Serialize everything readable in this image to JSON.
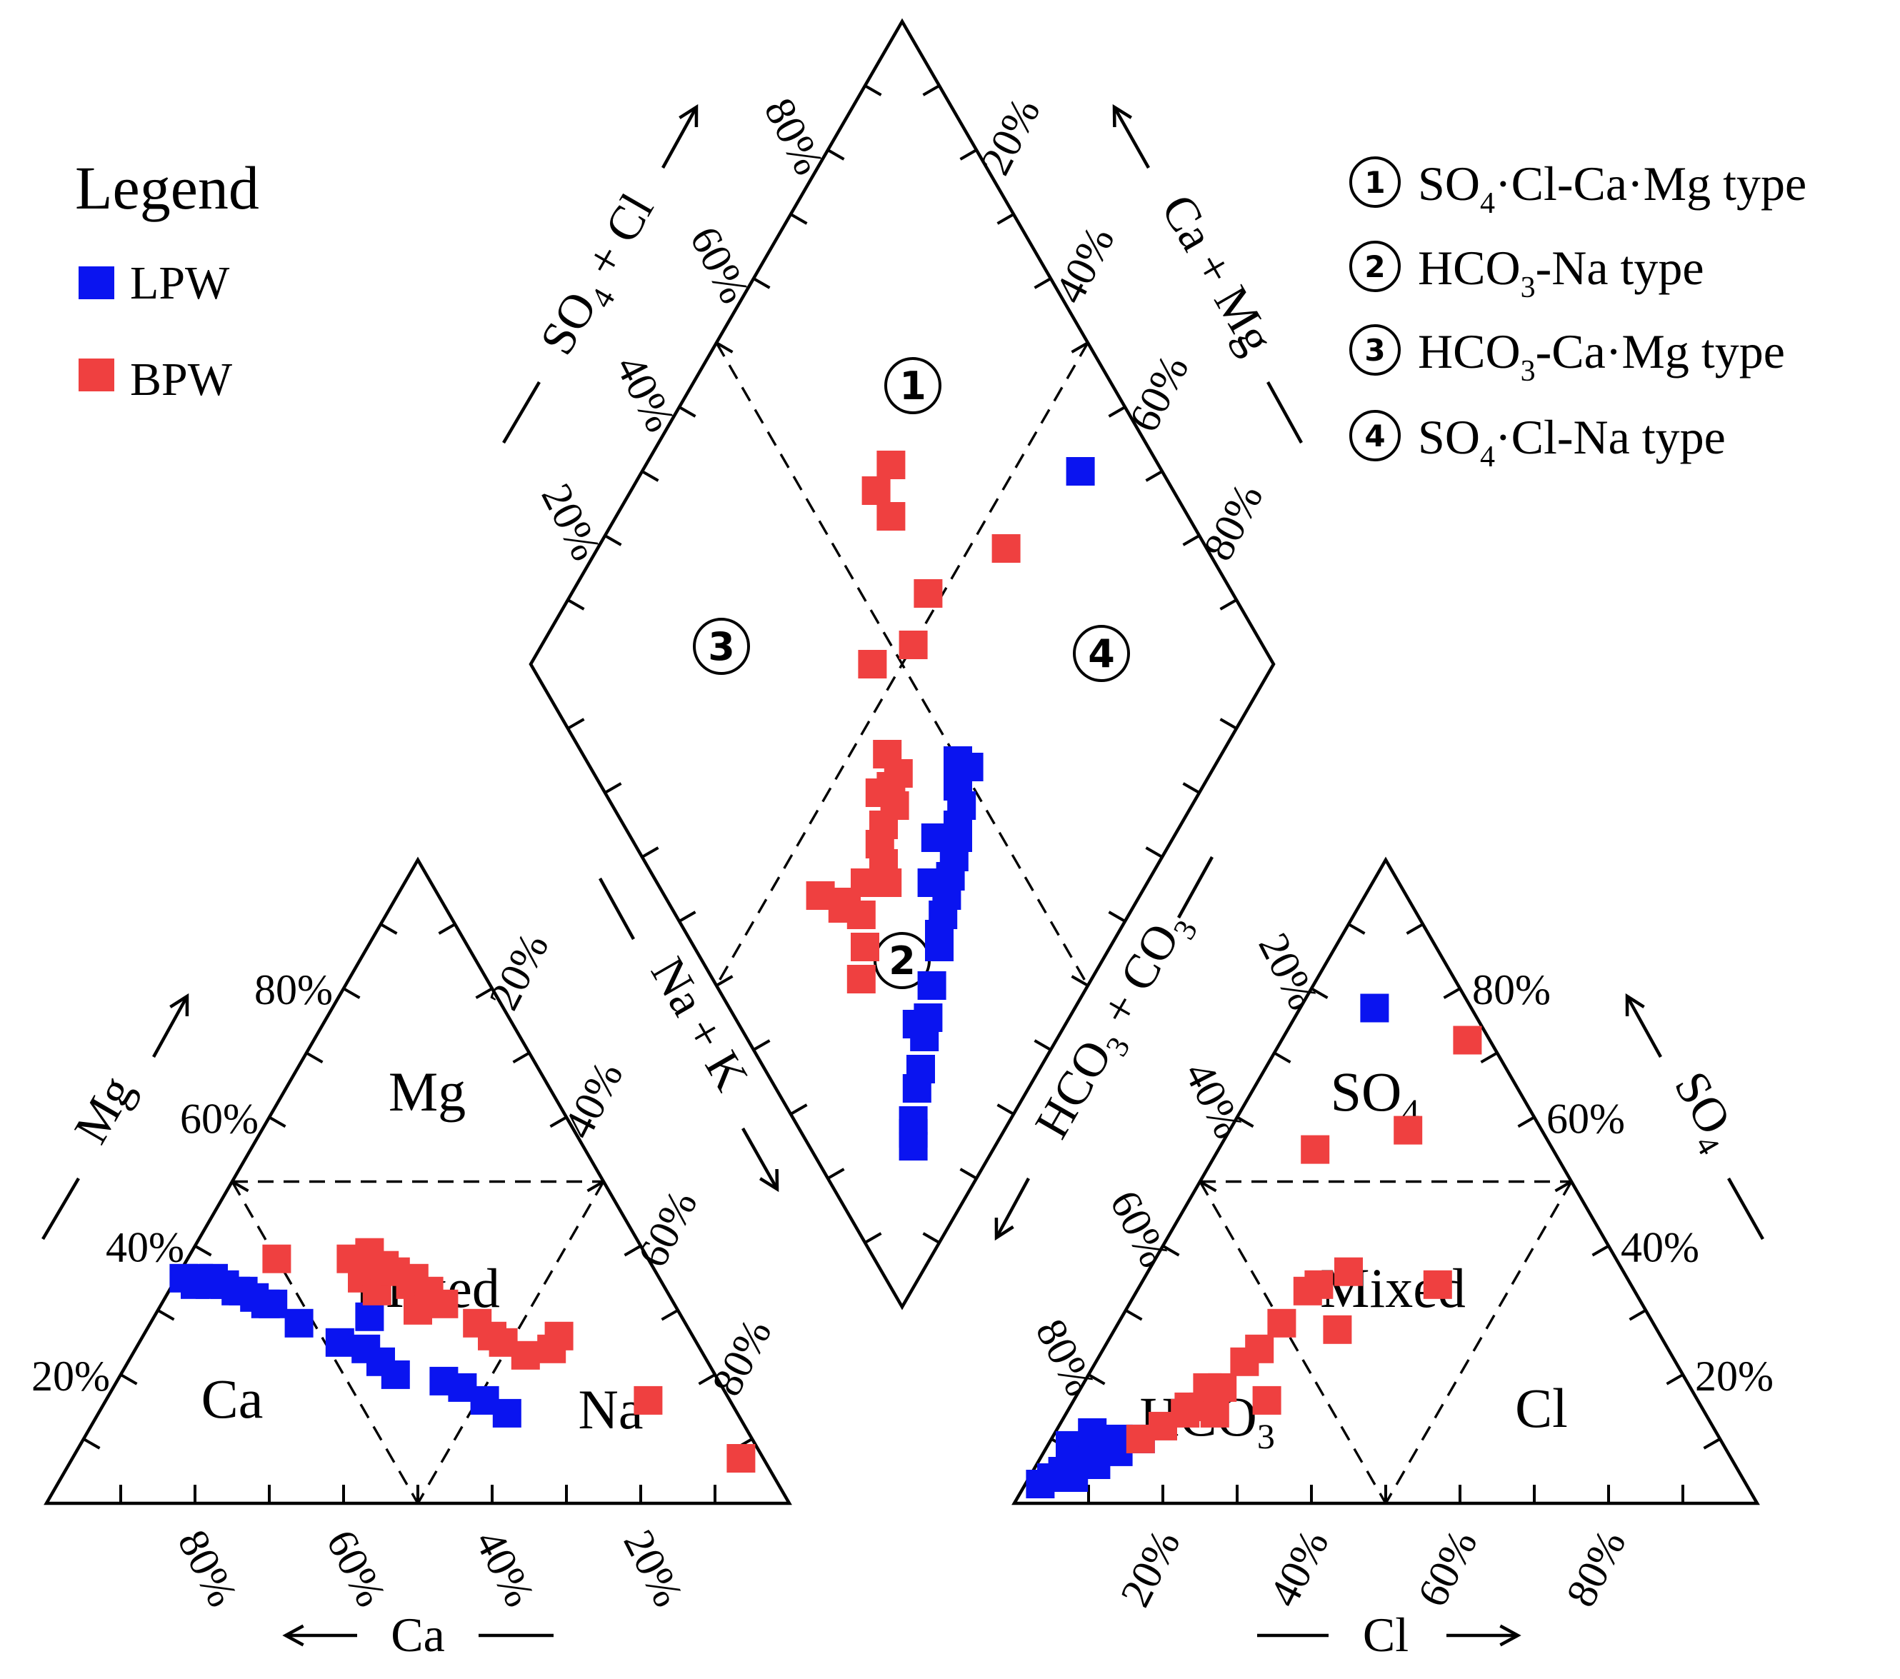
{
  "chart_data": {
    "type": "scatter",
    "subtype": "piper-trilinear",
    "legend": {
      "title": "Legend",
      "items": [
        {
          "name": "LPW",
          "color": "#0a14f0"
        },
        {
          "name": "BPW",
          "color": "#ef4040"
        }
      ]
    },
    "water_types": [
      {
        "num": "1",
        "pre": "SO",
        "sub1": "4",
        "mid": "·Cl-Ca·Mg type",
        "sub2": "",
        "post": ""
      },
      {
        "num": "2",
        "pre": "HCO",
        "sub1": "3",
        "mid": "-Na type",
        "sub2": "",
        "post": ""
      },
      {
        "num": "3",
        "pre": "HCO",
        "sub1": "3",
        "mid": "-Ca·Mg type",
        "sub2": "",
        "post": ""
      },
      {
        "num": "4",
        "pre": "SO",
        "sub1": "4",
        "mid": "·Cl-Na type",
        "sub2": "",
        "post": ""
      }
    ],
    "axes": {
      "cation_bottom": "Ca",
      "cation_left": "Mg",
      "anion_bottom": "Cl",
      "anion_right": "SO",
      "anion_right_sub": "4",
      "diamond_upper_left": {
        "a": "SO",
        "sub": "4",
        "b": " + Cl"
      },
      "diamond_upper_right": "Ca + Mg",
      "diamond_lower_left": "Na + K",
      "diamond_lower_right": {
        "a": "HCO",
        "sub1": "3",
        "b": " + CO",
        "sub2": "3"
      }
    },
    "tick_labels": [
      "20%",
      "40%",
      "60%",
      "80%"
    ],
    "zones": {
      "cation": {
        "mg": "Mg",
        "mixed": "Mixed",
        "ca": "Ca",
        "na": "Na"
      },
      "anion": {
        "so4": "SO",
        "so4_sub": "4",
        "mixed": "Mixed",
        "hco3": "HCO",
        "hco3_sub": "3",
        "cl": "Cl"
      }
    },
    "series": [
      {
        "name": "LPW",
        "color": "#0a14f0",
        "cation": [
          {
            "ca": 64,
            "mg": 35
          },
          {
            "ca": 63,
            "mg": 34
          },
          {
            "ca": 62,
            "mg": 35
          },
          {
            "ca": 61,
            "mg": 34
          },
          {
            "ca": 60,
            "mg": 35
          },
          {
            "ca": 59,
            "mg": 34
          },
          {
            "ca": 58,
            "mg": 33
          },
          {
            "ca": 57,
            "mg": 33
          },
          {
            "ca": 56,
            "mg": 32
          },
          {
            "ca": 55,
            "mg": 31
          },
          {
            "ca": 54,
            "mg": 31
          },
          {
            "ca": 52,
            "mg": 28
          },
          {
            "ca": 48,
            "mg": 25
          },
          {
            "ca": 45,
            "mg": 24
          },
          {
            "ca": 44,
            "mg": 22
          },
          {
            "ca": 43,
            "mg": 20
          },
          {
            "ca": 37,
            "mg": 19
          },
          {
            "ca": 35,
            "mg": 18
          },
          {
            "ca": 33,
            "mg": 16
          },
          {
            "ca": 31,
            "mg": 14
          },
          {
            "ca": 42,
            "mg": 29
          }
        ],
        "anion": [
          {
            "cl": 2,
            "so4": 3
          },
          {
            "cl": 3,
            "so4": 4
          },
          {
            "cl": 4,
            "so4": 5
          },
          {
            "cl": 5,
            "so4": 6
          },
          {
            "cl": 6,
            "so4": 7
          },
          {
            "cl": 7,
            "so4": 8
          },
          {
            "cl": 8,
            "so4": 9
          },
          {
            "cl": 9,
            "so4": 10
          },
          {
            "cl": 4,
            "so4": 7
          },
          {
            "cl": 6,
            "so4": 4
          },
          {
            "cl": 3,
            "so4": 9
          },
          {
            "cl": 8,
            "so4": 6
          },
          {
            "cl": 5,
            "so4": 11
          },
          {
            "cl": 10,
            "so4": 8
          },
          {
            "cl": 12,
            "so4": 10
          },
          {
            "cl": 10,
            "so4": 77
          }
        ],
        "diamond": [
          {
            "na": 59,
            "so4cl": 89
          },
          {
            "na": 67,
            "so4cl": 51
          },
          {
            "na": 65,
            "so4cl": 50
          },
          {
            "na": 67,
            "so4cl": 48
          },
          {
            "na": 69,
            "so4cl": 47
          },
          {
            "na": 70,
            "so4cl": 45
          },
          {
            "na": 71,
            "so4cl": 44
          },
          {
            "na": 70,
            "so4cl": 43
          },
          {
            "na": 72,
            "so4cl": 42
          },
          {
            "na": 68,
            "so4cl": 41
          },
          {
            "na": 73,
            "so4cl": 40
          },
          {
            "na": 74,
            "so4cl": 38
          },
          {
            "na": 71,
            "so4cl": 37
          },
          {
            "na": 75,
            "so4cl": 36
          },
          {
            "na": 76,
            "so4cl": 34
          },
          {
            "na": 77,
            "so4cl": 33
          },
          {
            "na": 79,
            "so4cl": 29
          },
          {
            "na": 81,
            "so4cl": 26
          },
          {
            "na": 82,
            "so4cl": 24
          },
          {
            "na": 80,
            "so4cl": 24
          },
          {
            "na": 84,
            "so4cl": 21
          },
          {
            "na": 85,
            "so4cl": 19
          },
          {
            "na": 87,
            "so4cl": 16
          },
          {
            "na": 88,
            "so4cl": 15
          },
          {
            "na": 89,
            "so4cl": 14
          }
        ]
      },
      {
        "name": "BPW",
        "color": "#ef4040",
        "cation": [
          {
            "ca": 50,
            "mg": 38
          },
          {
            "ca": 40,
            "mg": 38
          },
          {
            "ca": 40,
            "mg": 35
          },
          {
            "ca": 39,
            "mg": 33
          },
          {
            "ca": 38,
            "mg": 36
          },
          {
            "ca": 37,
            "mg": 39
          },
          {
            "ca": 36,
            "mg": 37
          },
          {
            "ca": 35,
            "mg": 36
          },
          {
            "ca": 34,
            "mg": 34
          },
          {
            "ca": 33,
            "mg": 35
          },
          {
            "ca": 32,
            "mg": 33
          },
          {
            "ca": 31,
            "mg": 31
          },
          {
            "ca": 28,
            "mg": 28
          },
          {
            "ca": 27,
            "mg": 26
          },
          {
            "ca": 26,
            "mg": 25
          },
          {
            "ca": 24,
            "mg": 23
          },
          {
            "ca": 20,
            "mg": 24
          },
          {
            "ca": 18,
            "mg": 26
          },
          {
            "ca": 11,
            "mg": 16
          },
          {
            "ca": 3,
            "mg": 7
          },
          {
            "ca": 35,
            "mg": 30
          }
        ],
        "anion": [
          {
            "cl": 12,
            "so4": 10
          },
          {
            "cl": 14,
            "so4": 12
          },
          {
            "cl": 16,
            "so4": 14
          },
          {
            "cl": 18,
            "so4": 15
          },
          {
            "cl": 20,
            "so4": 14
          },
          {
            "cl": 19,
            "so4": 18
          },
          {
            "cl": 20,
            "so4": 22
          },
          {
            "cl": 21,
            "so4": 24
          },
          {
            "cl": 22,
            "so4": 28
          },
          {
            "cl": 23,
            "so4": 33
          },
          {
            "cl": 24,
            "so4": 34
          },
          {
            "cl": 26,
            "so4": 16
          },
          {
            "cl": 30,
            "so4": 27
          },
          {
            "cl": 27,
            "so4": 36
          },
          {
            "cl": 40,
            "so4": 34
          },
          {
            "cl": 17,
            "so4": 18
          },
          {
            "cl": 25,
            "so4": 72
          },
          {
            "cl": 16,
            "so4": 15
          },
          {
            "cl": 13,
            "so4": 55
          },
          {
            "cl": 24,
            "so4": 58
          }
        ],
        "diamond": [
          {
            "na": 55,
            "so4cl": 73
          },
          {
            "na": 48,
            "so4cl": 59
          },
          {
            "na": 37,
            "so4cl": 60
          },
          {
            "na": 33,
            "so4cl": 60
          },
          {
            "na": 50,
            "so4cl": 53
          },
          {
            "na": 33,
            "so4cl": 64
          },
          {
            "na": 46,
            "so4cl": 46
          },
          {
            "na": 55,
            "so4cl": 41
          },
          {
            "na": 58,
            "so4cl": 41
          },
          {
            "na": 58,
            "so4cl": 39
          },
          {
            "na": 57,
            "so4cl": 37
          },
          {
            "na": 60,
            "so4cl": 38
          },
          {
            "na": 60,
            "so4cl": 35
          },
          {
            "na": 61,
            "so4cl": 33
          },
          {
            "na": 63,
            "so4cl": 32
          },
          {
            "na": 65,
            "so4cl": 31
          },
          {
            "na": 62,
            "so4cl": 28
          },
          {
            "na": 67,
            "so4cl": 23
          },
          {
            "na": 64,
            "so4cl": 25
          },
          {
            "na": 61,
            "so4cl": 24
          },
          {
            "na": 61,
            "so4cl": 23
          },
          {
            "na": 57,
            "so4cl": 21
          },
          {
            "na": 69,
            "so4cl": 20
          }
        ]
      }
    ]
  }
}
